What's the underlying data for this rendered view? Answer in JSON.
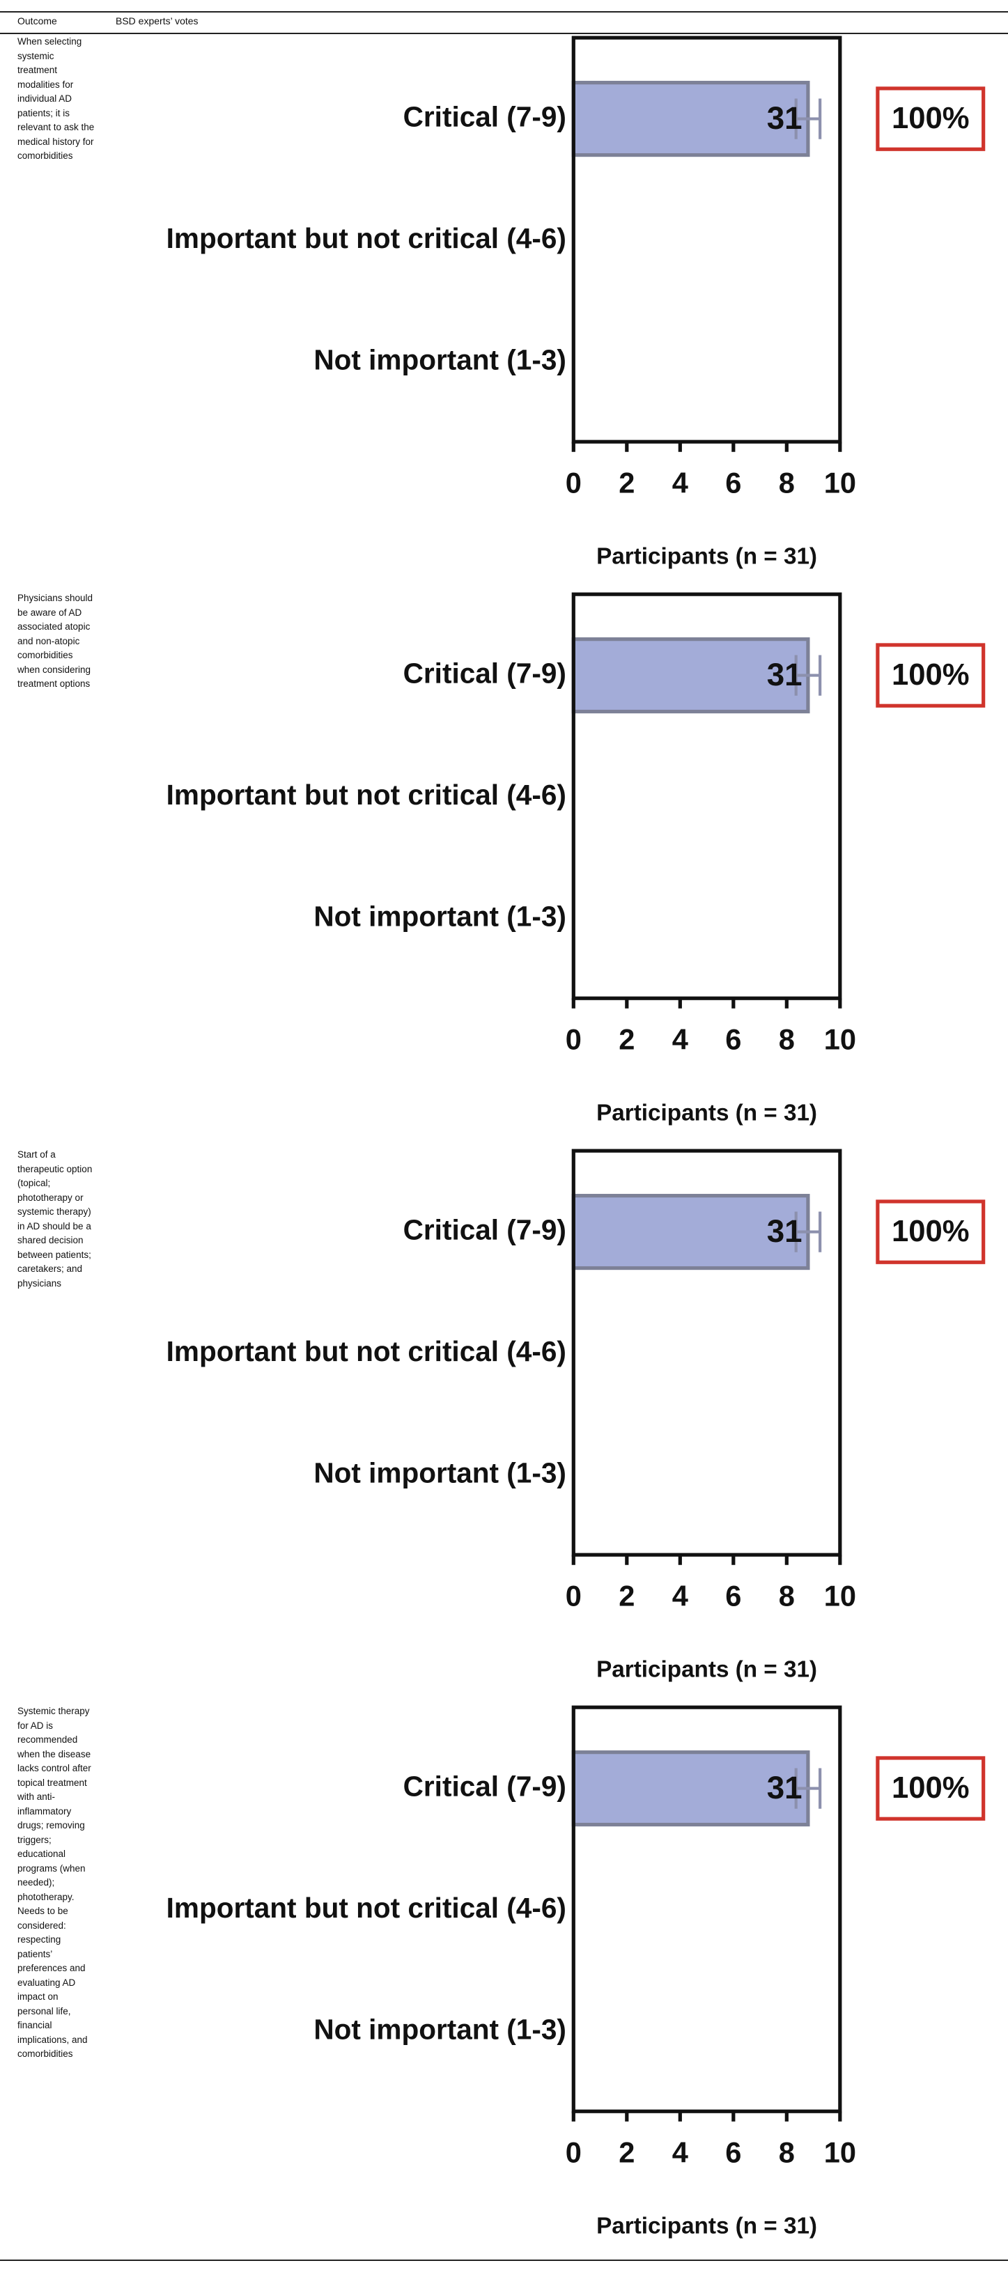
{
  "table": {
    "headers": [
      "Outcome",
      "BSD experts’ votes"
    ],
    "outcomes": [
      "When selecting systemic treatment modalities for individual AD patients; it is relevant to ask the medical history for comorbidities",
      "Physicians should be aware of AD associated atopic and non-atopic comorbidities when considering treatment options",
      "Start of a therapeutic option (topical; phototherapy or systemic therapy) in AD should be a shared decision between patients; caretakers; and physicians",
      "Systemic therapy for AD is recommended when the disease lacks control after topical treatment with anti-inflammatory drugs; removing triggers; educational programs (when needed); phototherapy. Needs to be considered: respecting patients’ preferences and evaluating AD impact on personal life, financial implications, and comorbidities"
    ]
  },
  "chart_data": [
    {
      "type": "bar",
      "orientation": "horizontal",
      "categories": [
        "Critical (7-9)",
        "Important but not critical (4-6)",
        "Not important (1-3)"
      ],
      "values": [
        8.8,
        null,
        null
      ],
      "errors": [
        0.45,
        null,
        null
      ],
      "bar_labels": [
        "31",
        null,
        null
      ],
      "annotation": "100%",
      "xlabel": "Participants (n = 31)",
      "xlim": [
        0,
        10
      ],
      "xticks": [
        0,
        2,
        4,
        6,
        8,
        10
      ],
      "color": "#a3acd8",
      "edge_color": "#7d8197",
      "error_color": "#8c90ad",
      "annotation_color": "#d0342c"
    },
    {
      "type": "bar",
      "orientation": "horizontal",
      "categories": [
        "Critical (7-9)",
        "Important but not critical (4-6)",
        "Not important (1-3)"
      ],
      "values": [
        8.8,
        null,
        null
      ],
      "errors": [
        0.45,
        null,
        null
      ],
      "bar_labels": [
        "31",
        null,
        null
      ],
      "annotation": "100%",
      "xlabel": "Participants (n = 31)",
      "xlim": [
        0,
        10
      ],
      "xticks": [
        0,
        2,
        4,
        6,
        8,
        10
      ],
      "color": "#a3acd8",
      "edge_color": "#7d8197",
      "error_color": "#8c90ad",
      "annotation_color": "#d0342c"
    },
    {
      "type": "bar",
      "orientation": "horizontal",
      "categories": [
        "Critical (7-9)",
        "Important but not critical (4-6)",
        "Not important (1-3)"
      ],
      "values": [
        8.8,
        null,
        null
      ],
      "errors": [
        0.45,
        null,
        null
      ],
      "bar_labels": [
        "31",
        null,
        null
      ],
      "annotation": "100%",
      "xlabel": "Participants (n = 31)",
      "xlim": [
        0,
        10
      ],
      "xticks": [
        0,
        2,
        4,
        6,
        8,
        10
      ],
      "color": "#a3acd8",
      "edge_color": "#7d8197",
      "error_color": "#8c90ad",
      "annotation_color": "#d0342c"
    },
    {
      "type": "bar",
      "orientation": "horizontal",
      "categories": [
        "Critical (7-9)",
        "Important but not critical (4-6)",
        "Not important (1-3)"
      ],
      "values": [
        8.8,
        null,
        null
      ],
      "errors": [
        0.45,
        null,
        null
      ],
      "bar_labels": [
        "31",
        null,
        null
      ],
      "annotation": "100%",
      "xlabel": "Participants (n = 31)",
      "xlim": [
        0,
        10
      ],
      "xticks": [
        0,
        2,
        4,
        6,
        8,
        10
      ],
      "color": "#a3acd8",
      "edge_color": "#7d8197",
      "error_color": "#8c90ad",
      "annotation_color": "#d0342c"
    }
  ]
}
